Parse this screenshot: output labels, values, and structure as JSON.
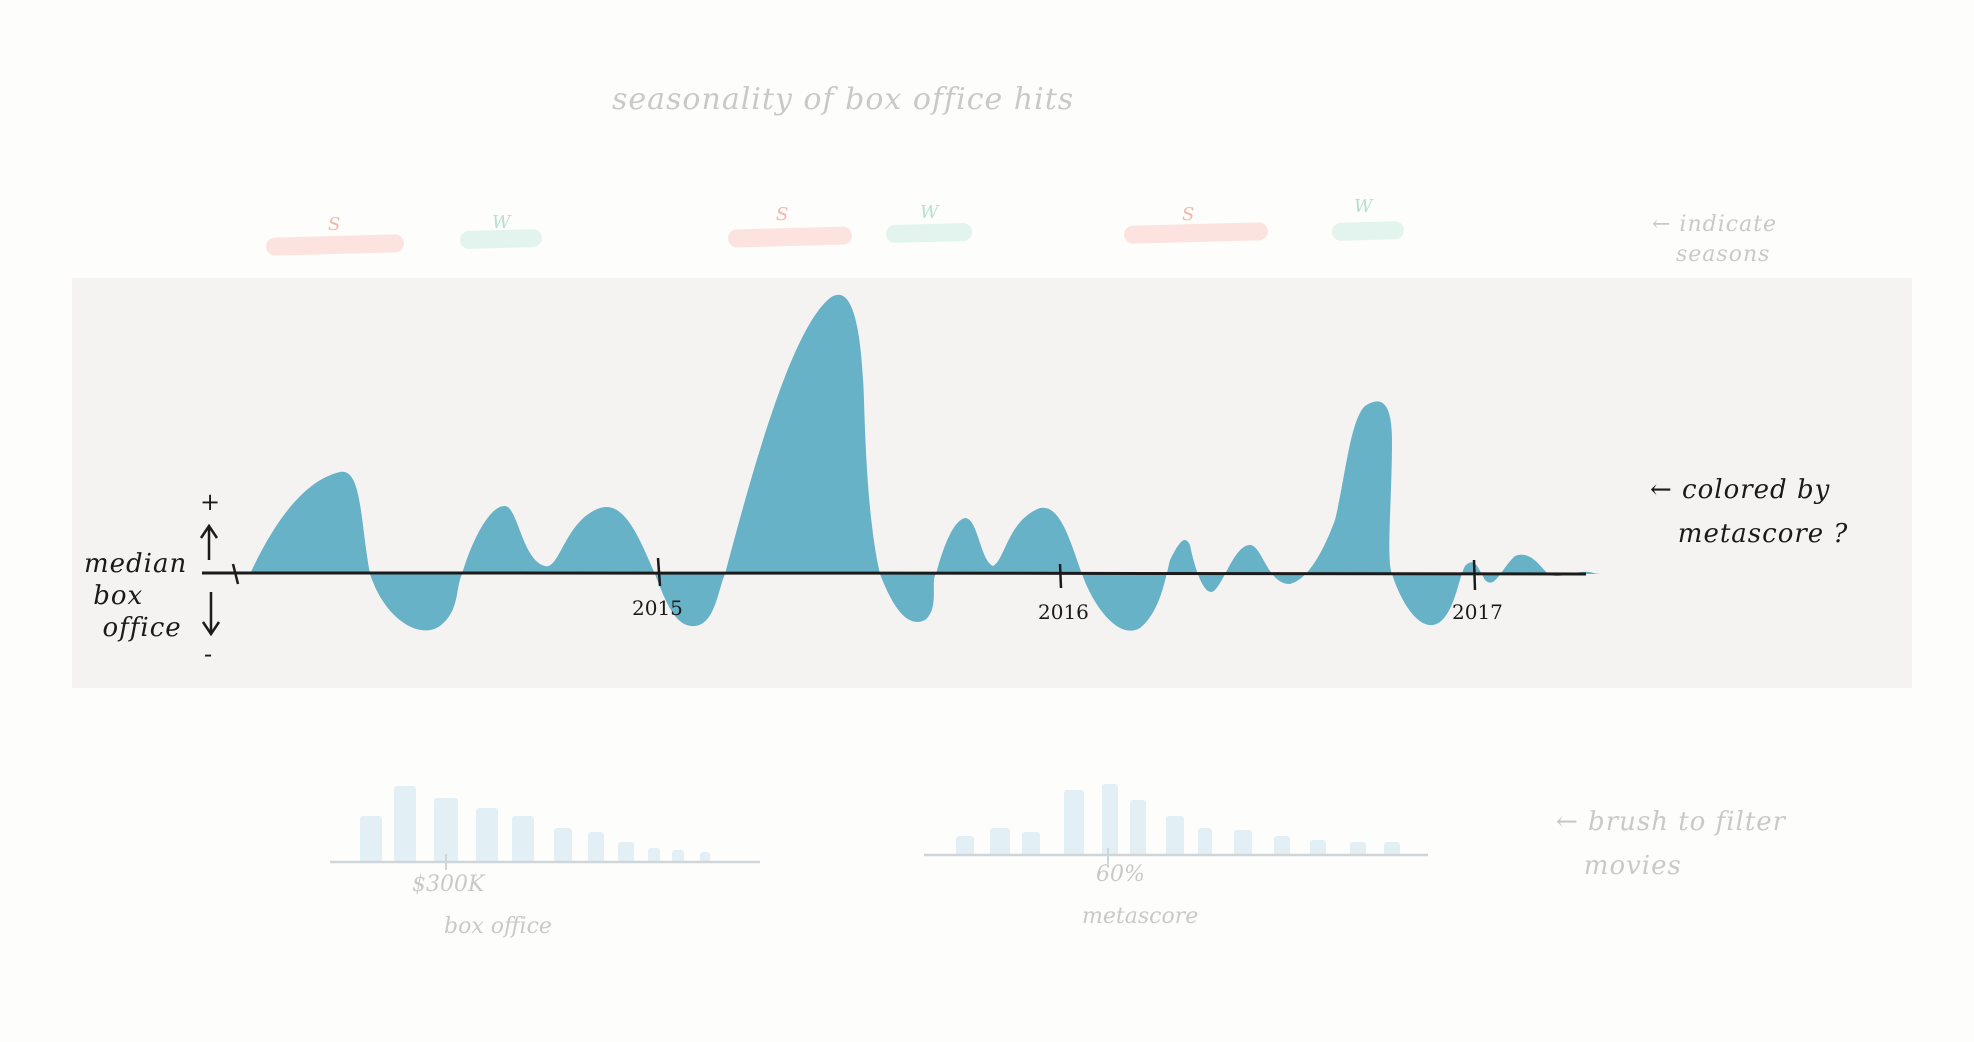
{
  "title": "seasonality of box office hits",
  "seasons": {
    "bands": [
      {
        "letter": "S",
        "kind": "summer"
      },
      {
        "letter": "W",
        "kind": "winter"
      },
      {
        "letter": "S",
        "kind": "summer"
      },
      {
        "letter": "W",
        "kind": "winter"
      },
      {
        "letter": "S",
        "kind": "summer"
      },
      {
        "letter": "W",
        "kind": "winter"
      }
    ],
    "note": "← indicate\n   seasons"
  },
  "timeline": {
    "y_axis_label": "median\n box\n  office",
    "plus_sign": "+",
    "minus_sign": "-",
    "note": "← colored by\n   metascore ?",
    "fill_color": "#68b2c8",
    "years": [
      "2015",
      "2016",
      "2017"
    ]
  },
  "histograms": {
    "box_office": {
      "tick_label": "$300K",
      "axis_label": "box office"
    },
    "metascore": {
      "tick_label": "60%",
      "axis_label": "metascore"
    },
    "note": "← brush to filter\n   movies"
  },
  "colors": {
    "timeline_fill": "#68b2c8",
    "summer": "#fde3df",
    "winter": "#e3f4ef",
    "histogram_bar": "#e2f0f6",
    "faint_text": "#c9c9c9"
  }
}
